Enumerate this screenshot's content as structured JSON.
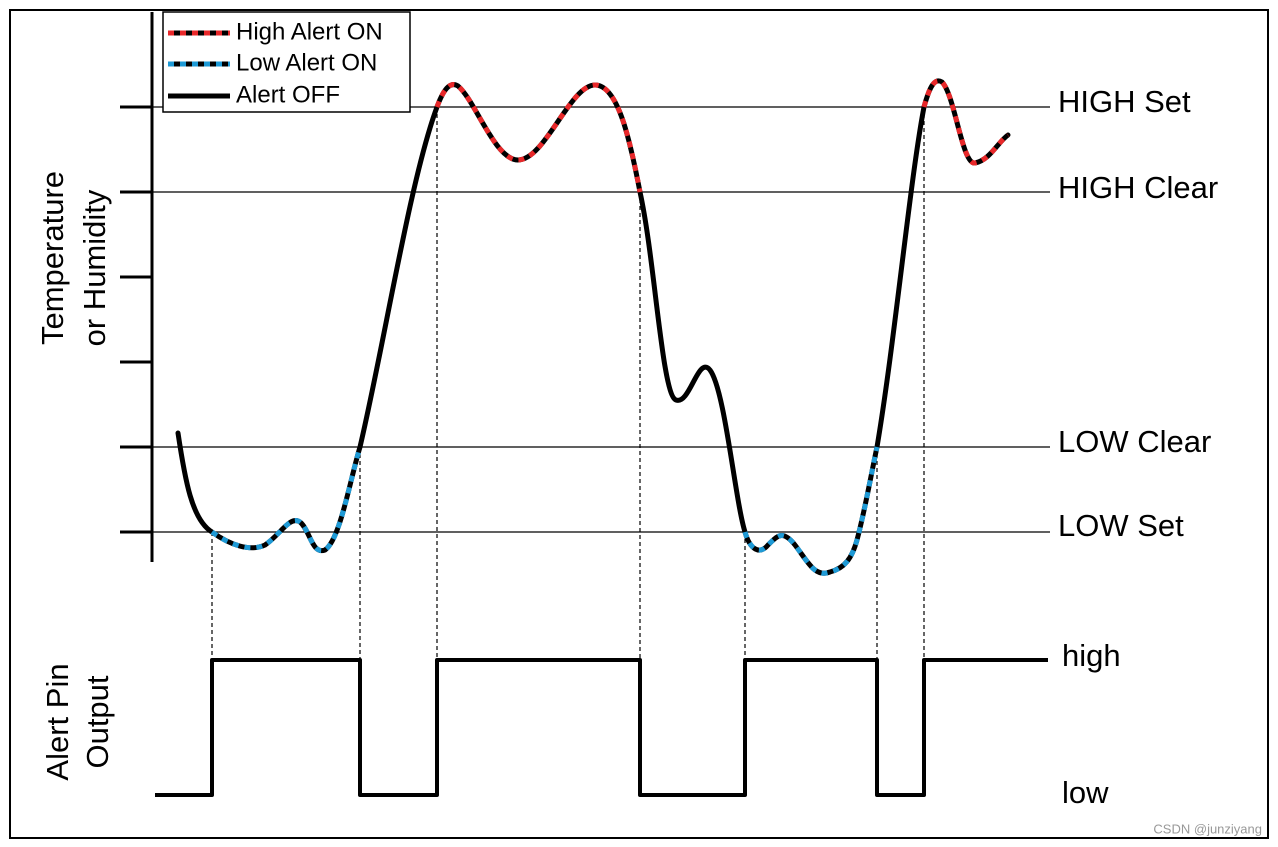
{
  "legend": {
    "items": [
      "High Alert ON",
      "Low Alert ON",
      "Alert OFF"
    ]
  },
  "top_axis_label": [
    "Temperature",
    "or Humidity"
  ],
  "thresholds": [
    "HIGH Set",
    "HIGH Clear",
    "LOW Clear",
    "LOW Set"
  ],
  "bottom_axis_label": [
    "Alert Pin",
    "Output"
  ],
  "pin_levels": [
    "high",
    "low"
  ],
  "watermark": "CSDN @junziyang"
}
